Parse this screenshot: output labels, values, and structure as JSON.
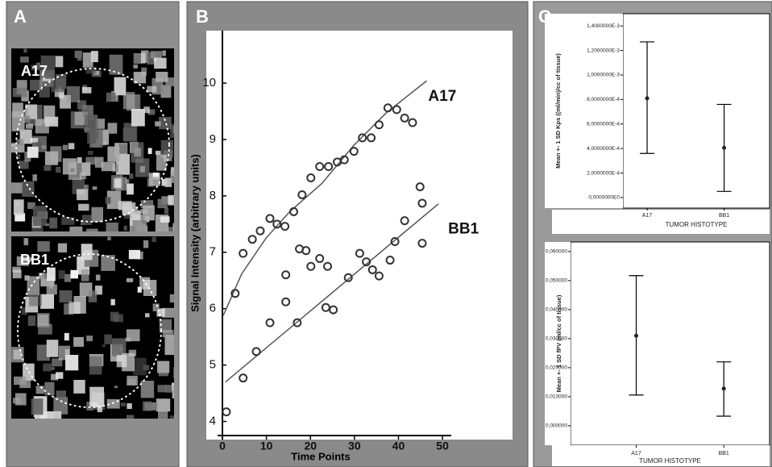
{
  "panel_a": {
    "panel_label": "A",
    "images": [
      {
        "label": "A17"
      },
      {
        "label": "BB1"
      }
    ]
  },
  "chart_data": [
    {
      "type": "scatter",
      "panel_label": "B",
      "x_label": "Time Points",
      "y_label": "Signal Intensity (arbitrary units)",
      "xlim": [
        0,
        52
      ],
      "ylim": [
        3.75,
        10.93
      ],
      "xticks": [
        0,
        10,
        20,
        30,
        40,
        50
      ],
      "yticks": [
        4,
        5,
        6,
        7,
        8,
        9,
        10
      ],
      "color": "#333333",
      "series": [
        {
          "name": "A17",
          "x": [
            2.9,
            4.7,
            6.8,
            8.6,
            10.8,
            12.4,
            14.2,
            14.4,
            16.2,
            18.1,
            20.1,
            22.1,
            24.1,
            26.1,
            27.7,
            29.9,
            31.8,
            33.8,
            35.6,
            37.6,
            39.6,
            41.4,
            43.2
          ],
          "values": [
            6.27,
            6.98,
            7.23,
            7.38,
            7.6,
            7.5,
            7.46,
            6.6,
            7.72,
            8.02,
            8.32,
            8.52,
            8.52,
            8.6,
            8.64,
            8.79,
            9.03,
            9.03,
            9.26,
            9.56,
            9.53,
            9.38,
            9.3
          ],
          "fit": {
            "x": [
              0.2,
              4.4,
              9.9,
              15.3,
              22.6,
              29.9,
              37.2,
              46.4
            ],
            "values": [
              5.88,
              6.62,
              7.25,
              7.72,
              8.22,
              8.9,
              9.47,
              10.04
            ]
          }
        },
        {
          "name": "BB1",
          "x": [
            0.9,
            4.7,
            7.7,
            10.8,
            14.4,
            17.0,
            17.5,
            19.0,
            20.1,
            22.1,
            23.9,
            23.5,
            25.2,
            28.6,
            31.2,
            32.7,
            34.1,
            35.6,
            38.1,
            39.2,
            41.4,
            44.9,
            45.4,
            45.4
          ],
          "values": [
            4.17,
            4.77,
            5.24,
            5.75,
            6.12,
            5.75,
            7.06,
            7.03,
            6.75,
            6.89,
            6.75,
            6.02,
            5.98,
            6.55,
            6.98,
            6.83,
            6.69,
            6.58,
            6.86,
            7.19,
            7.56,
            8.16,
            7.87,
            7.16
          ],
          "fit": {
            "x": [
              0.7,
              49.1
            ],
            "values": [
              4.7,
              7.86
            ]
          }
        }
      ]
    },
    {
      "type": "errorbar",
      "panel_label": "C",
      "x_label": "TUMOR HISTOTYPE",
      "y_label": "Mean +- 1 SD Kps ((ml/min)/cc of tissue)",
      "categories": [
        "A17",
        "BB1"
      ],
      "values": [
        0.00081,
        0.000406
      ],
      "lower": [
        0.00036,
        5e-05
      ],
      "upper": [
        0.00127,
        0.00076
      ],
      "ylim": [
        -8.6e-05,
        0.0015
      ],
      "yticks": [
        {
          "value": 0,
          "label": "0,0000000E0"
        },
        {
          "value": 0.0002,
          "label": "2,0000000E-4"
        },
        {
          "value": 0.0004,
          "label": "4,0000000E-4"
        },
        {
          "value": 0.0006,
          "label": "6,0000000E-4"
        },
        {
          "value": 0.0008,
          "label": "8,0000000E-4"
        },
        {
          "value": 0.001,
          "label": "1,0000000E-3"
        },
        {
          "value": 0.0012,
          "label": "1,2000000E-3"
        },
        {
          "value": 0.0014,
          "label": "1,4000000E-3"
        }
      ]
    },
    {
      "type": "errorbar",
      "x_label": "TUMOR HISTOTYPE",
      "y_label": "Mean +- 1 SD fPV (ml/cc of tissue)",
      "categories": [
        "A17",
        "BB1"
      ],
      "values": [
        0.031,
        0.0128
      ],
      "lower": [
        0.0106,
        0.0033
      ],
      "upper": [
        0.0517,
        0.022
      ],
      "ylim": [
        -0.0067,
        0.0633
      ],
      "yticks": [
        {
          "value": 0,
          "label": "0,000000"
        },
        {
          "value": 0.01,
          "label": "0,010000"
        },
        {
          "value": 0.02,
          "label": "0,020000"
        },
        {
          "value": 0.03,
          "label": "0,030000"
        },
        {
          "value": 0.04,
          "label": "0,040000"
        },
        {
          "value": 0.05,
          "label": "0,050000"
        },
        {
          "value": 0.06,
          "label": "0,060000"
        }
      ]
    }
  ]
}
